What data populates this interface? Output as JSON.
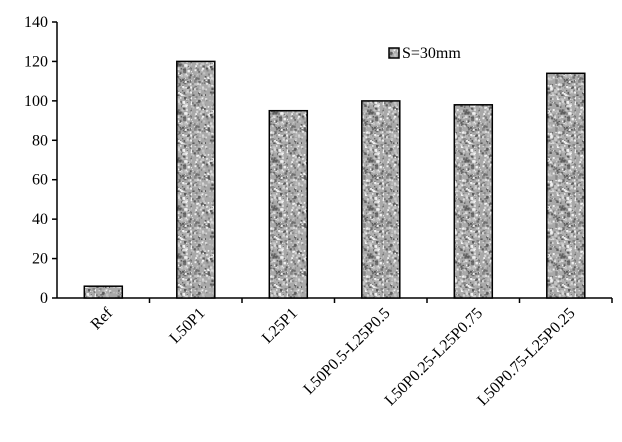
{
  "chart_data": {
    "type": "bar",
    "categories": [
      "Ref",
      "L50P1",
      "L25P1",
      "L50P0.5-L25P0.5",
      "L50P0.25-L25P0.75",
      "L50P0.75-L25P0.25"
    ],
    "series": [
      {
        "name": "S=30mm",
        "values": [
          6,
          120,
          95,
          100,
          98,
          114
        ]
      }
    ],
    "y_ticks": [
      "0",
      "20",
      "40",
      "60",
      "80",
      "100",
      "120",
      "140"
    ],
    "ylim": [
      0,
      140
    ],
    "grid": false,
    "legend_position": "top-right",
    "bar_fill": "speckled-gray",
    "colors": {
      "bar_base": "#a9a9a9",
      "bar_outline": "#000000",
      "axis": "#000000"
    }
  }
}
